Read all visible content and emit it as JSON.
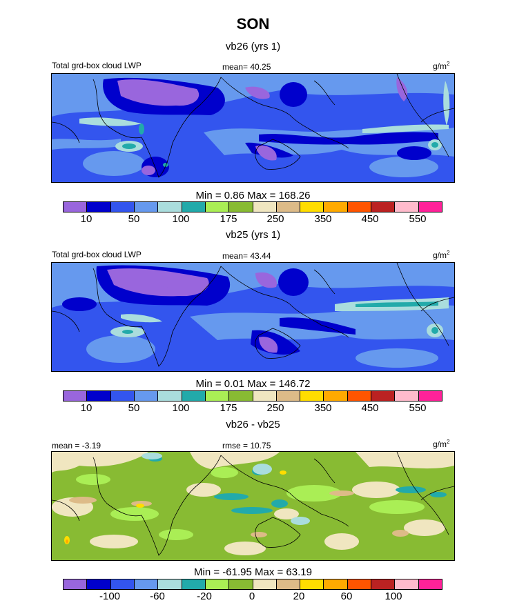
{
  "title": "SON",
  "panels": [
    {
      "subtitle": "vb26 (yrs 1)",
      "left_label": "Total grd-box cloud LWP",
      "center_label": "mean=  40.25",
      "units_base": "g/m",
      "units_exp": "2",
      "minmax": "Min =   0.86 Max = 168.26",
      "colorbar_labels": [
        "10",
        "50",
        "100",
        "175",
        "250",
        "350",
        "450",
        "550"
      ]
    },
    {
      "subtitle": "vb25 (yrs 1)",
      "left_label": "Total grd-box cloud LWP",
      "center_label": "mean=  43.44",
      "units_base": "g/m",
      "units_exp": "2",
      "minmax": "Min =   0.01 Max = 146.72",
      "colorbar_labels": [
        "10",
        "50",
        "100",
        "175",
        "250",
        "350",
        "450",
        "550"
      ]
    },
    {
      "subtitle": "vb26 - vb25",
      "left_label": "mean =  -3.19",
      "center_label": "rmse =  10.75",
      "units_base": "g/m",
      "units_exp": "2",
      "minmax": "Min = -61.95 Max =  63.19",
      "colorbar_labels": [
        "-100",
        "-60",
        "-20",
        "0",
        "20",
        "60",
        "100"
      ]
    }
  ],
  "colors": {
    "fill_levels": [
      "#9966dd",
      "#0000cc",
      "#3355ee",
      "#6699ee",
      "#aadddd",
      "#22aaaa",
      "#aaee55",
      "#88bb33",
      "#f0e6c0",
      "#ddbb88",
      "#ffdd00",
      "#ffaa00",
      "#ff5500",
      "#bb2222",
      "#ffbbcc",
      "#ff2299"
    ],
    "land_outline": "#000000"
  },
  "chart_data": [
    {
      "type": "heatmap",
      "title": "vb26 (yrs 1)",
      "variable": "Total grd-box cloud LWP",
      "units": "g/m2",
      "mean": 40.25,
      "min": 0.86,
      "max": 168.26,
      "contour_levels": [
        10,
        25,
        50,
        75,
        100,
        125,
        175,
        200,
        250,
        300,
        350,
        400,
        450,
        500,
        550
      ],
      "colorbar_tick_labels": [
        10,
        50,
        100,
        175,
        250,
        350,
        450,
        550
      ]
    },
    {
      "type": "heatmap",
      "title": "vb25 (yrs 1)",
      "variable": "Total grd-box cloud LWP",
      "units": "g/m2",
      "mean": 43.44,
      "min": 0.01,
      "max": 146.72,
      "contour_levels": [
        10,
        25,
        50,
        75,
        100,
        125,
        175,
        200,
        250,
        300,
        350,
        400,
        450,
        500,
        550
      ],
      "colorbar_tick_labels": [
        10,
        50,
        100,
        175,
        250,
        350,
        450,
        550
      ]
    },
    {
      "type": "heatmap",
      "title": "vb26 - vb25",
      "units": "g/m2",
      "mean": -3.19,
      "rmse": 10.75,
      "min": -61.95,
      "max": 63.19,
      "contour_levels": [
        -120,
        -100,
        -80,
        -60,
        -40,
        -20,
        -10,
        0,
        10,
        20,
        40,
        60,
        80,
        100,
        120
      ],
      "colorbar_tick_labels": [
        -100,
        -60,
        -20,
        0,
        20,
        60,
        100
      ]
    }
  ]
}
